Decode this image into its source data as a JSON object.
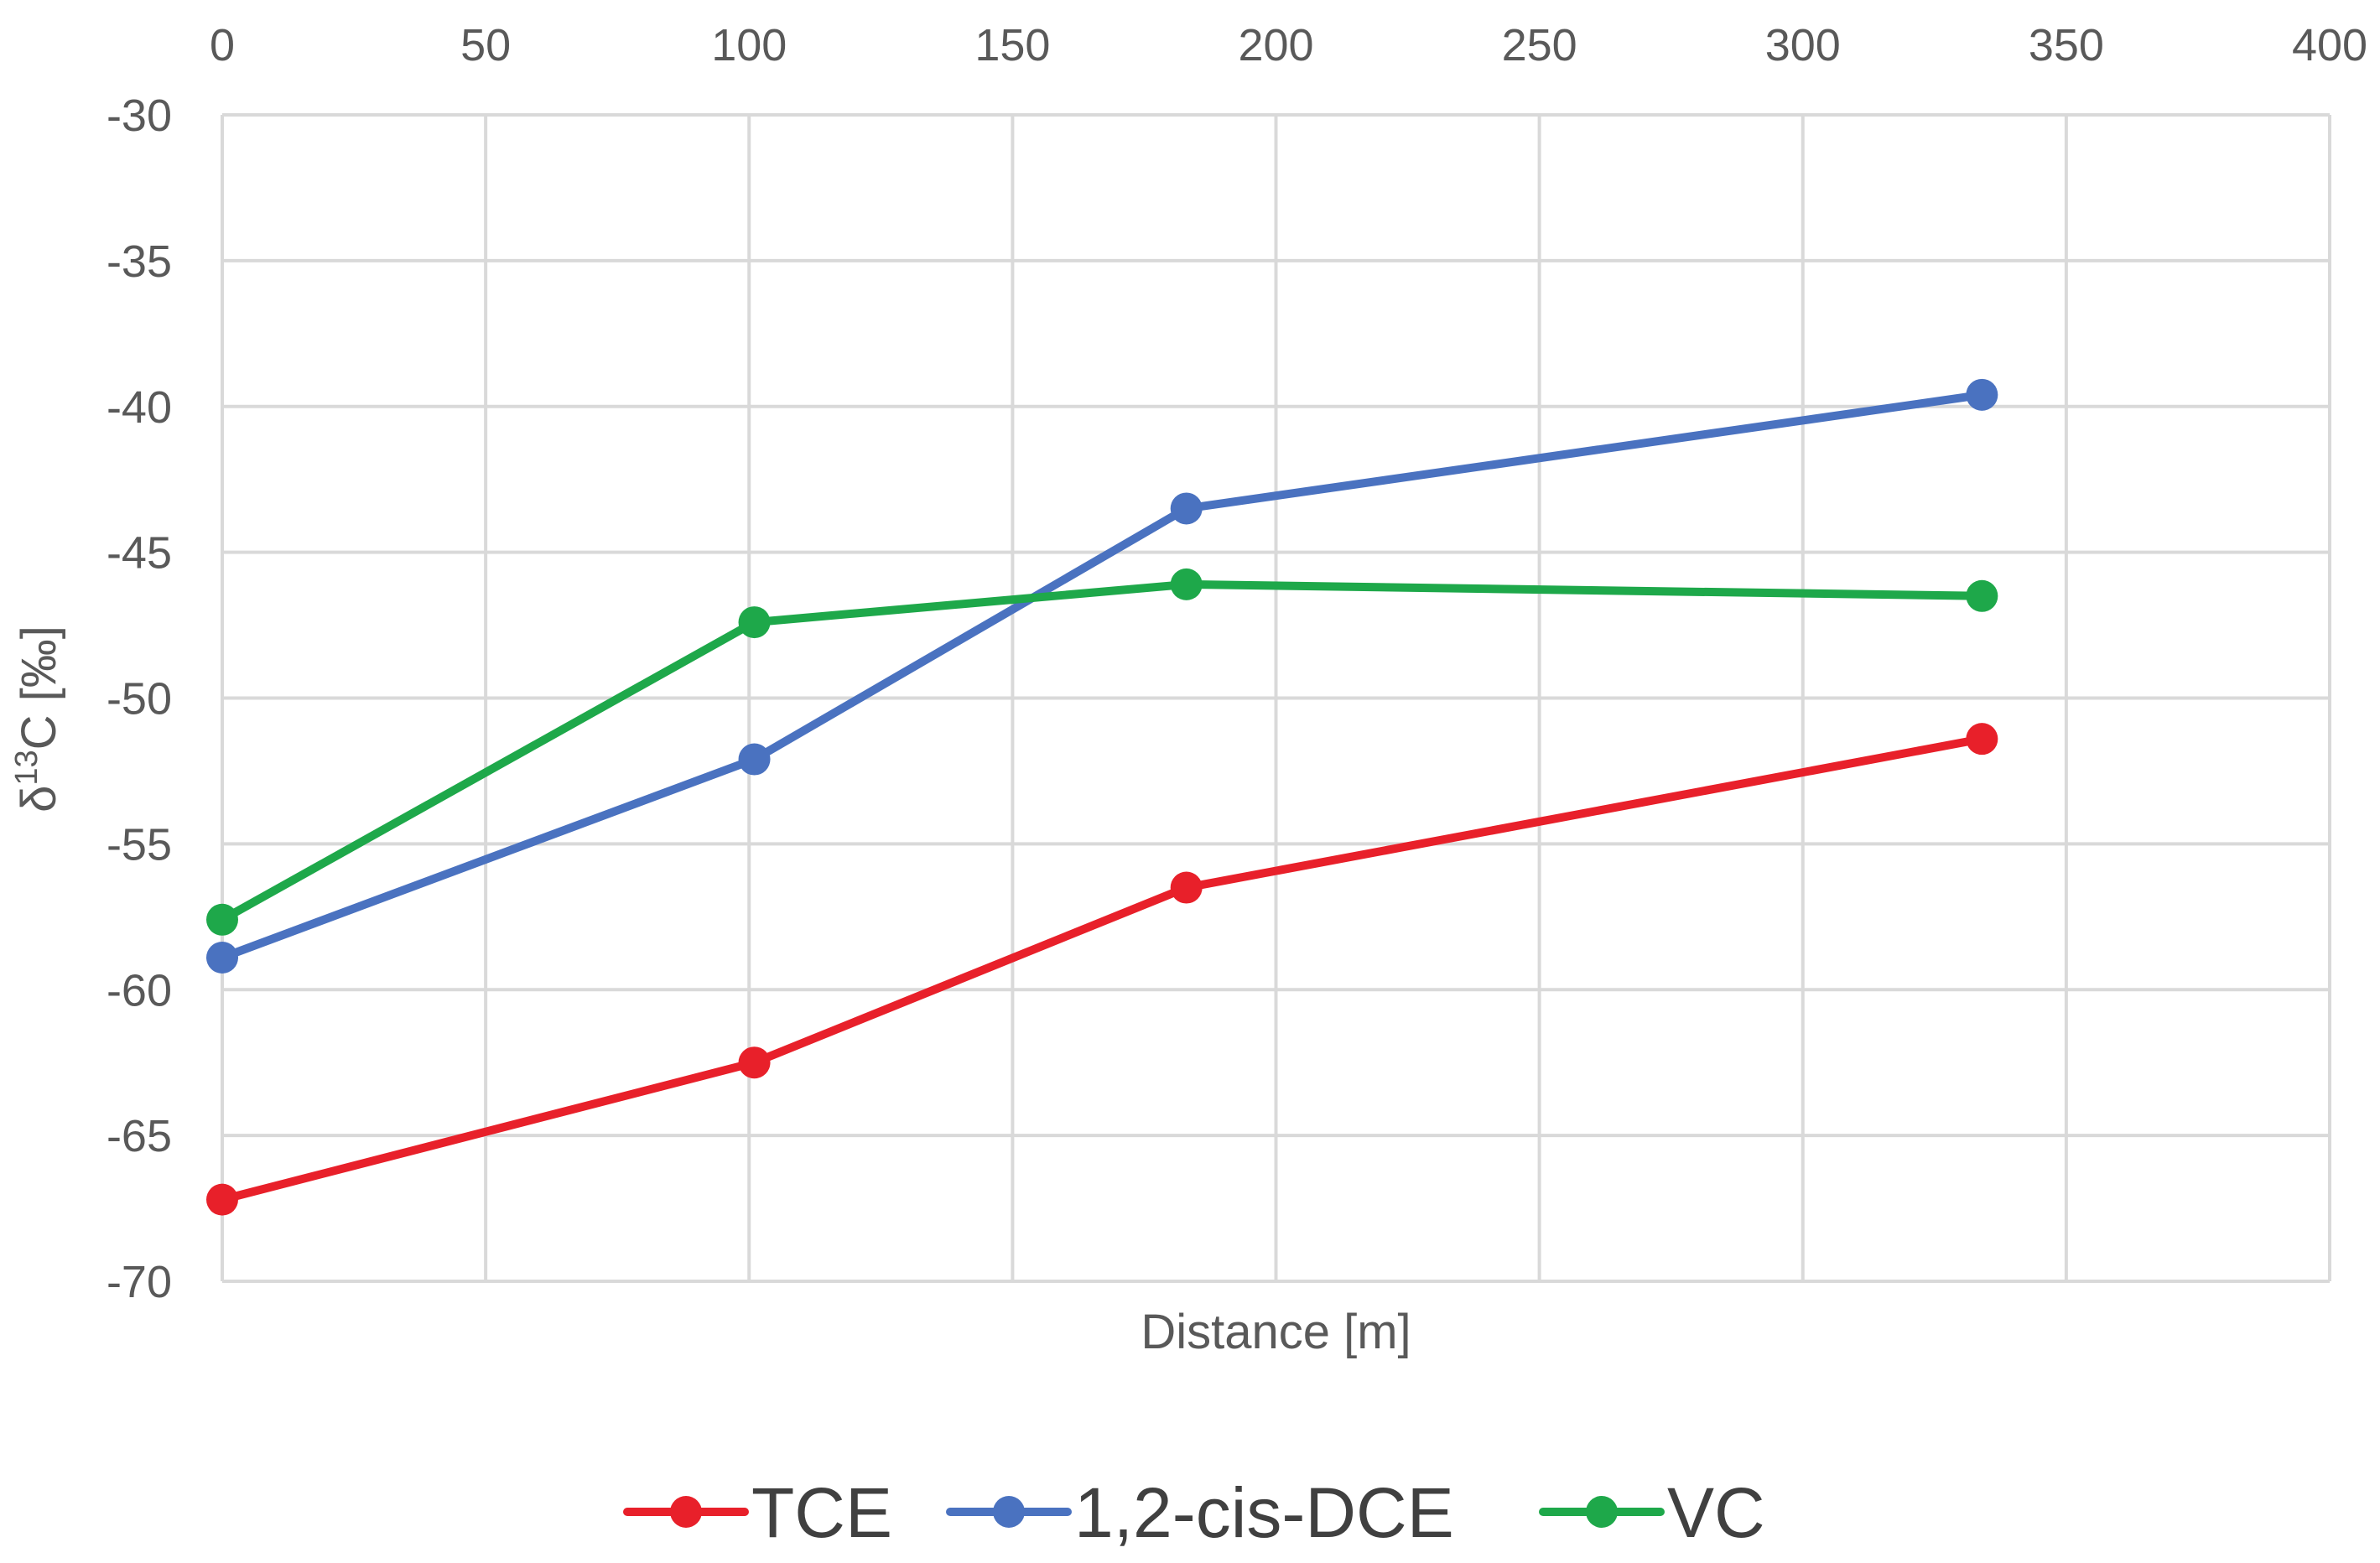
{
  "chart_data": {
    "type": "line",
    "title": "",
    "xlabel": "Distance [m]",
    "ylabel_main": "δ",
    "ylabel_sup": "13",
    "ylabel_rest": "C [‰]",
    "xlim": [
      0,
      400
    ],
    "ylim": [
      -70,
      -30
    ],
    "xticks": [
      0,
      50,
      100,
      150,
      200,
      250,
      300,
      350,
      400
    ],
    "yticks": [
      -30,
      -35,
      -40,
      -45,
      -50,
      -55,
      -60,
      -65,
      -70
    ],
    "x_axis_position": "top",
    "grid": true,
    "legend_position": "bottom",
    "series": [
      {
        "name": "TCE",
        "color": "#e8202a",
        "x": [
          0,
          101,
          183,
          334
        ],
        "y": [
          -67.2,
          -62.5,
          -56.5,
          -51.4
        ]
      },
      {
        "name": "1,2-cis-DCE",
        "color": "#4a72c0",
        "x": [
          0,
          101,
          183,
          334
        ],
        "y": [
          -58.9,
          -52.1,
          -43.5,
          -39.6
        ]
      },
      {
        "name": "VC",
        "color": "#1ea84a",
        "x": [
          0,
          101,
          183,
          334
        ],
        "y": [
          -57.6,
          -47.4,
          -46.1,
          -46.5
        ]
      }
    ]
  }
}
